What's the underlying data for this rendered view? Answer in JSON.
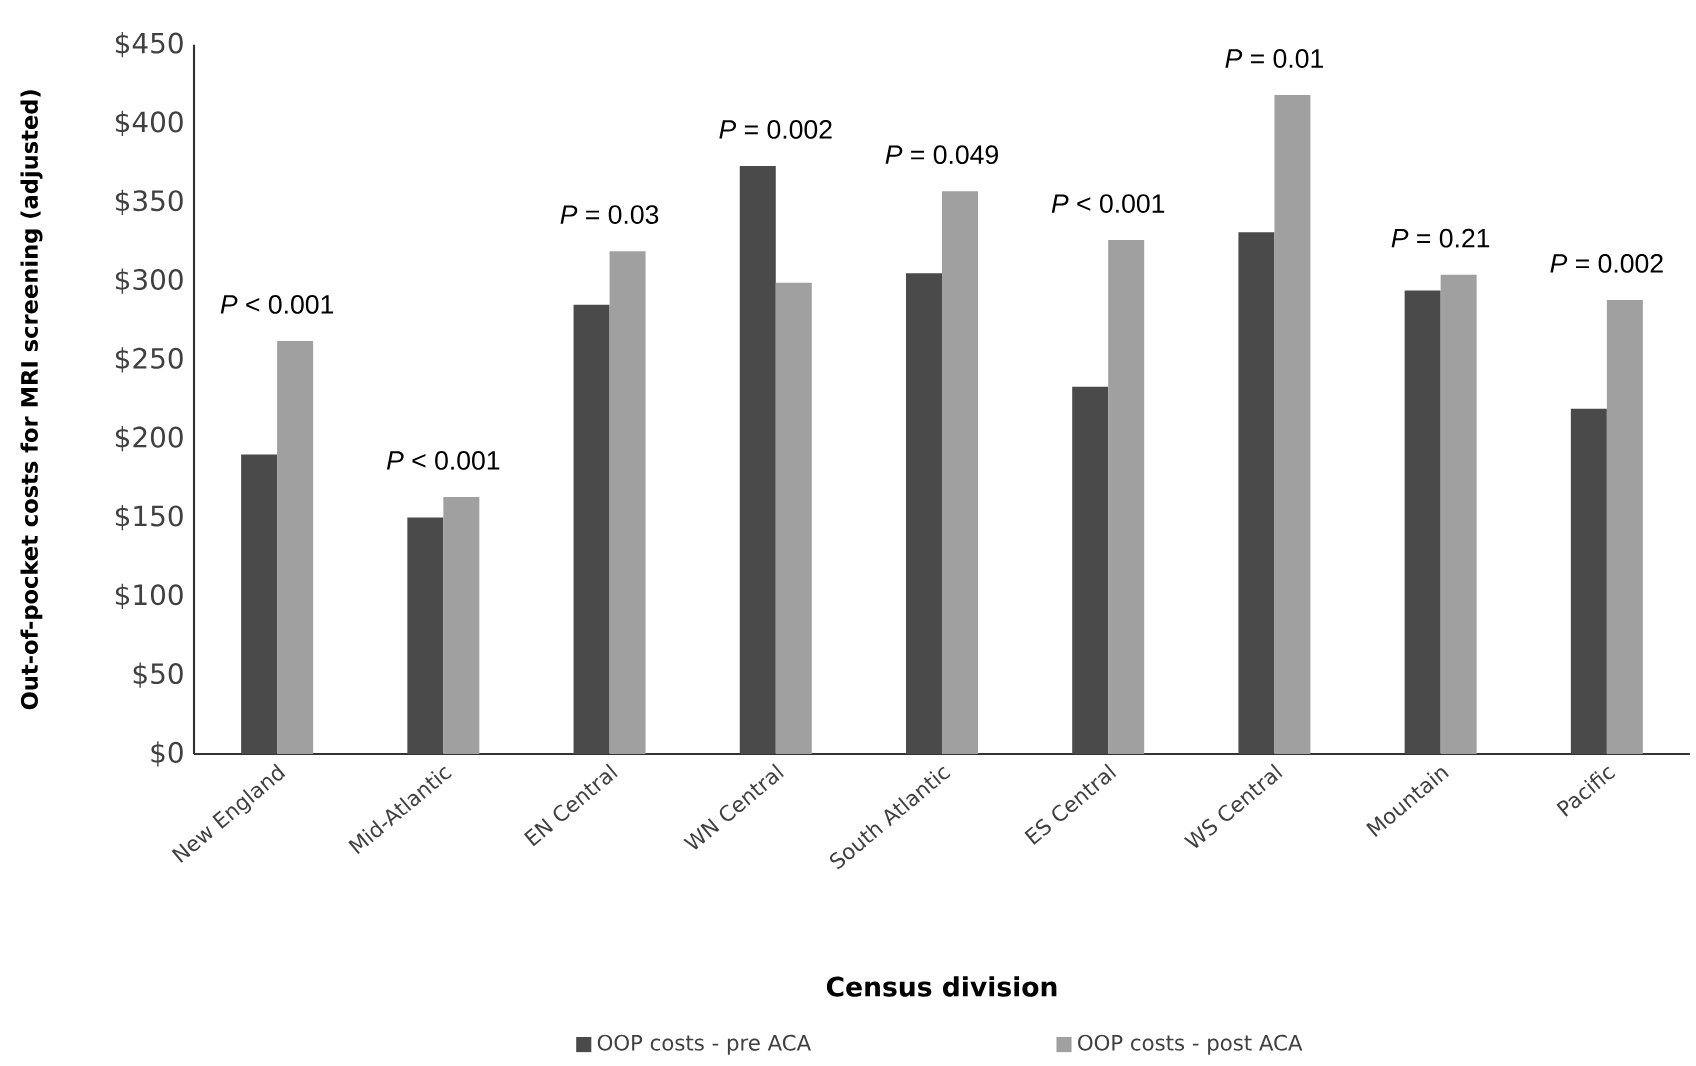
{
  "chart_data": {
    "type": "bar",
    "xlabel": "Census division",
    "ylabel": "Out-of-pocket costs for MRI screening (adjusted)",
    "categories": [
      "New England",
      "Mid-Atlantic",
      "EN Central",
      "WN Central",
      "South Atlantic",
      "ES Central",
      "WS Central",
      "Mountain",
      "Pacific"
    ],
    "series": [
      {
        "name": "OOP costs - pre ACA",
        "color": "#4a4a4a",
        "values": [
          190,
          150,
          285,
          373,
          305,
          233,
          331,
          294,
          219
        ]
      },
      {
        "name": "OOP costs - post ACA",
        "color": "#a0a0a0",
        "values": [
          262,
          163,
          319,
          299,
          357,
          326,
          418,
          304,
          288
        ]
      }
    ],
    "ylim": [
      0,
      450
    ],
    "yticks": [
      {
        "value": 0,
        "label": "$0"
      },
      {
        "value": 50,
        "label": "$50"
      },
      {
        "value": 100,
        "label": "$100"
      },
      {
        "value": 150,
        "label": "$150"
      },
      {
        "value": 200,
        "label": "$200"
      },
      {
        "value": 250,
        "label": "$250"
      },
      {
        "value": 300,
        "label": "$300"
      },
      {
        "value": 350,
        "label": "$350"
      },
      {
        "value": 400,
        "label": "$400"
      },
      {
        "value": 450,
        "label": "$450"
      }
    ],
    "annotations": [
      "*P* < 0.001",
      "*P* < 0.001",
      "*P* = 0.03",
      "*P* = 0.002",
      "*P* = 0.049",
      "*P* < 0.001",
      "*P* = 0.01",
      "*P* = 0.21",
      "*P* = 0.002"
    ],
    "legend": "bottom",
    "grid": false
  }
}
